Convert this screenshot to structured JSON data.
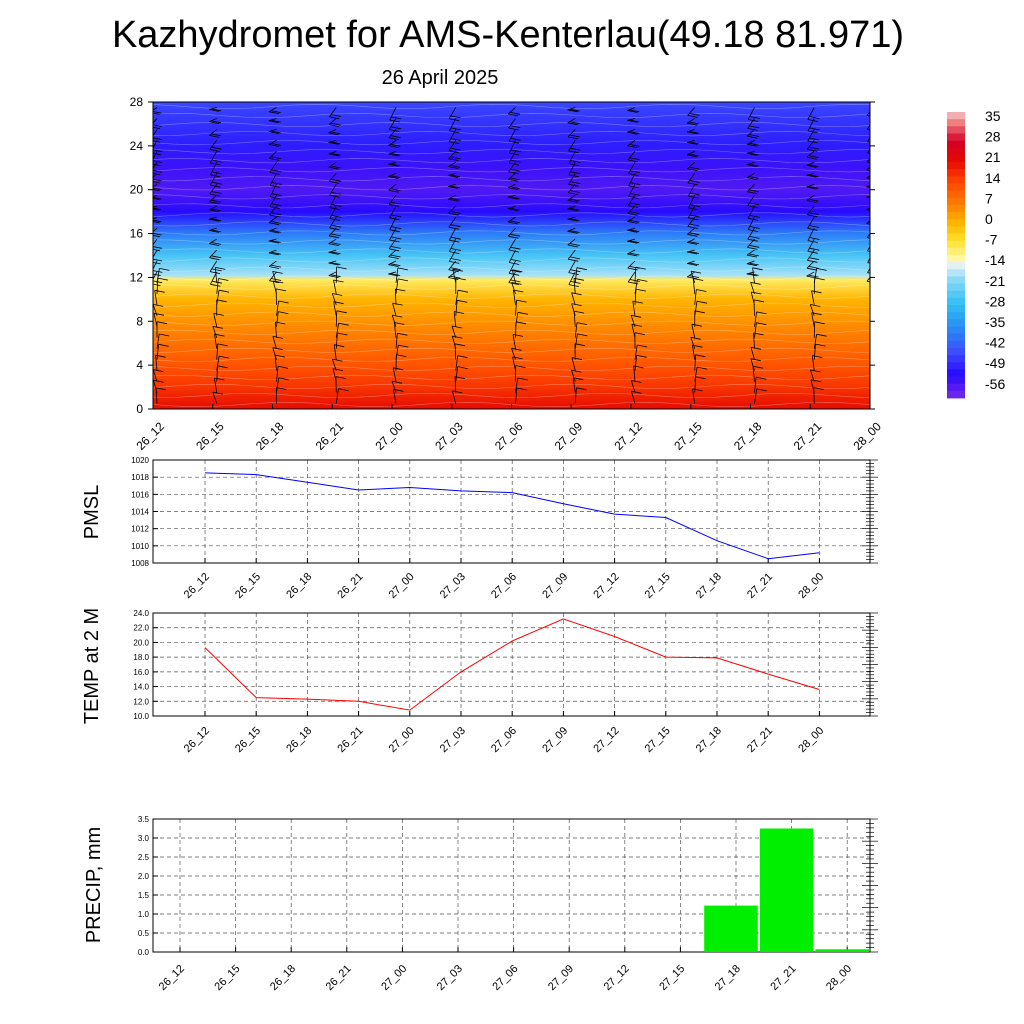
{
  "header": {
    "title": "Kazhydromet for AMS-Kenterlau(49.18 81.971)",
    "date": "26 April 2025"
  },
  "colors": {
    "pmsl_line": "#0000ff",
    "temp_line": "#ff0000",
    "precip_bar": "#00ee00",
    "grid": "#555555"
  },
  "chart_data": [
    {
      "type": "heatmap",
      "title": "",
      "x_categories": [
        "26_12",
        "26_15",
        "26_18",
        "26_21",
        "27_00",
        "27_03",
        "27_06",
        "27_09",
        "27_12",
        "27_15",
        "27_18",
        "27_21",
        "28_00"
      ],
      "y_ticks": [
        "0",
        "4",
        "8",
        "12",
        "16",
        "20",
        "24",
        "28"
      ],
      "ylim": [
        0,
        28
      ],
      "colorbar_labels": [
        "35",
        "28",
        "21",
        "14",
        "7",
        "0",
        "-7",
        "-14",
        "-21",
        "-28",
        "-35",
        "-42",
        "-49",
        "-56"
      ],
      "colorbar_range": [
        -60,
        38
      ],
      "profile": [
        {
          "y": 0,
          "value": 21
        },
        {
          "y": 2,
          "value": 16
        },
        {
          "y": 4,
          "value": 12
        },
        {
          "y": 6,
          "value": 8
        },
        {
          "y": 8,
          "value": 4
        },
        {
          "y": 10,
          "value": 0
        },
        {
          "y": 11.8,
          "value": -9
        },
        {
          "y": 12.2,
          "value": -18
        },
        {
          "y": 14,
          "value": -26
        },
        {
          "y": 16,
          "value": -38
        },
        {
          "y": 18,
          "value": -52
        },
        {
          "y": 20,
          "value": -56
        },
        {
          "y": 22,
          "value": -54
        },
        {
          "y": 24,
          "value": -50
        },
        {
          "y": 28,
          "value": -45
        }
      ],
      "has_wind_barbs": true
    },
    {
      "type": "line",
      "ylabel": "PMSL",
      "x": [
        "26_12",
        "26_15",
        "26_18",
        "26_21",
        "27_00",
        "27_03",
        "27_06",
        "27_09",
        "27_12",
        "27_15",
        "27_18",
        "27_21",
        "28_00"
      ],
      "values": [
        1018.5,
        1018.3,
        1017.4,
        1016.5,
        1016.8,
        1016.4,
        1016.2,
        1014.9,
        1013.7,
        1013.3,
        1010.6,
        1008.5,
        1009.2
      ],
      "y_ticks": [
        "1008",
        "1010",
        "1012",
        "1014",
        "1016",
        "1018",
        "1020"
      ],
      "ylim": [
        1008,
        1020
      ],
      "grid": true
    },
    {
      "type": "line",
      "ylabel": "TEMP at 2 M",
      "x": [
        "26_12",
        "26_15",
        "26_18",
        "26_21",
        "27_00",
        "27_03",
        "27_06",
        "27_09",
        "27_12",
        "27_15",
        "27_18",
        "27_21",
        "28_00"
      ],
      "values": [
        19.3,
        12.5,
        12.3,
        12.0,
        10.8,
        16.0,
        20.2,
        23.2,
        20.8,
        18.0,
        17.9,
        15.7,
        13.6
      ],
      "y_ticks": [
        "10.0",
        "12.0",
        "14.0",
        "16.0",
        "18.0",
        "20.0",
        "22.0",
        "24.0"
      ],
      "ylim": [
        10,
        24
      ],
      "grid": true
    },
    {
      "type": "bar",
      "ylabel": "PRECIP, mm",
      "categories": [
        "26_12",
        "26_15",
        "26_18",
        "26_21",
        "27_00",
        "27_03",
        "27_06",
        "27_09",
        "27_12",
        "27_15",
        "27_18",
        "27_21",
        "28_00"
      ],
      "values": [
        0,
        0,
        0,
        0,
        0,
        0,
        0,
        0,
        0,
        0,
        1.22,
        3.25,
        0.07
      ],
      "y_ticks": [
        "0.0",
        "0.5",
        "1.0",
        "1.5",
        "2.0",
        "2.5",
        "3.0",
        "3.5"
      ],
      "ylim": [
        0,
        3.5
      ],
      "grid": true
    }
  ]
}
